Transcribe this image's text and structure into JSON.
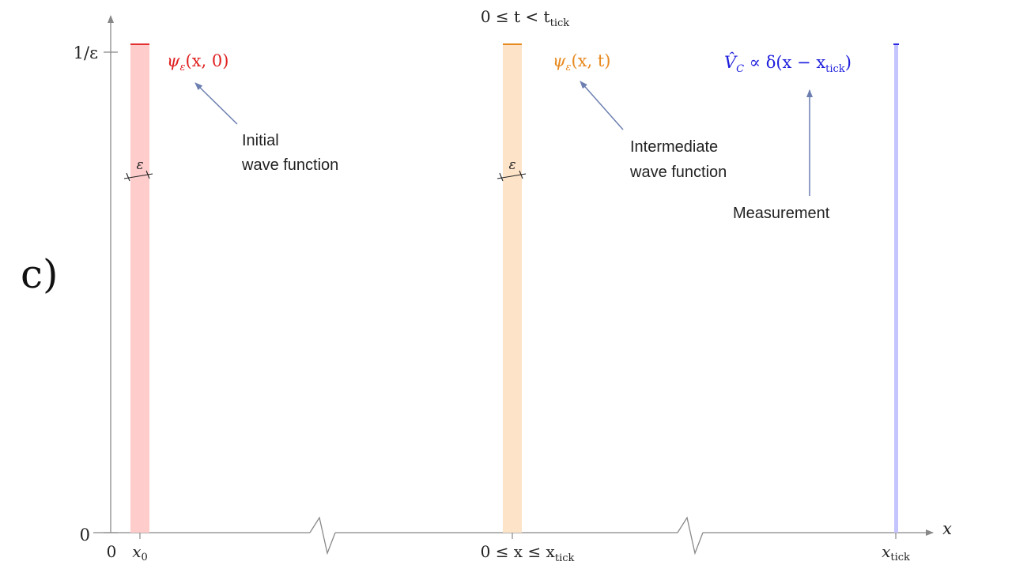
{
  "panel": {
    "label": "c)"
  },
  "header": {
    "condition": "0 ≤ t < t",
    "condition_sub": "tick"
  },
  "axes": {
    "y_axis": {
      "tick_top": "1/ε",
      "tick_zero": "0"
    },
    "x_axis": {
      "label": "x",
      "origin": "0"
    }
  },
  "x_ticks": {
    "x0": {
      "main": "x",
      "sub": "0"
    },
    "range": {
      "main": "0 ≤ x ≤ x",
      "sub": "tick"
    },
    "xtick": {
      "main": "x",
      "sub": "tick"
    }
  },
  "wave_initial": {
    "label_main": "ψ",
    "label_sub": "ε",
    "label_args": "(x, 0)",
    "width_label": "ε",
    "caption_line1": "Initial",
    "caption_line2": "wave function",
    "fill_color": "#ffcccc",
    "edge_color": "#e03030"
  },
  "wave_intermediate": {
    "label_main": "ψ",
    "label_sub": "ε",
    "label_args": "(x, t)",
    "width_label": "ε",
    "caption_line1": "Intermediate",
    "caption_line2": "wave function",
    "fill_color": "#fde3c8",
    "edge_color": "#e8891e"
  },
  "measurement": {
    "label_pre": "V̂",
    "label_sub_c": "C",
    "label_mid": " ∝ δ(x − x",
    "label_sub_tick": "tick",
    "label_post": ")",
    "caption": "Measurement",
    "fill_color": "#c4c4ff",
    "edge_color": "#2a2ae0"
  },
  "colors": {
    "axis": "#888888",
    "arrow": "#6d7fb0",
    "text": "#222222"
  }
}
